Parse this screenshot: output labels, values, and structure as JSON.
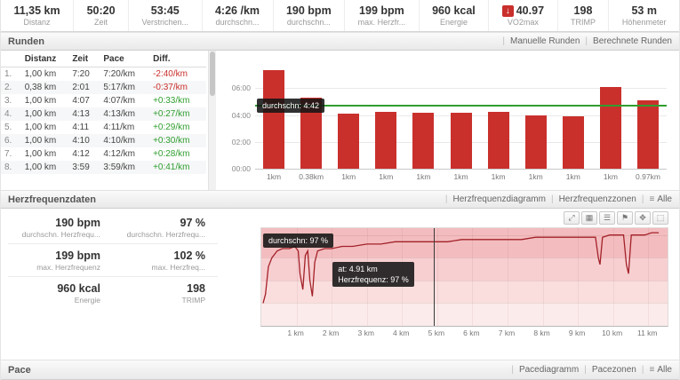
{
  "colors": {
    "accent_red": "#c9302c",
    "diff_green": "#2f9e2f",
    "hr_line": "#a32129",
    "avg_line_green": "#2f9e2f"
  },
  "stats_bar": {
    "items": [
      {
        "value": "11,35 km",
        "label": "Distanz"
      },
      {
        "value": "50:20",
        "label": "Zeit"
      },
      {
        "value": "53:45",
        "label": "Verstrichen..."
      },
      {
        "value": "4:26 /km",
        "label": "durchschn..."
      },
      {
        "value": "190 bpm",
        "label": "durchschn..."
      },
      {
        "value": "199 bpm",
        "label": "max. Herzfr..."
      },
      {
        "value": "960 kcal",
        "label": "Energie"
      },
      {
        "value": "40.97",
        "label": "VO2max",
        "icon": "red-down-arrow"
      },
      {
        "value": "198",
        "label": "TRIMP"
      },
      {
        "value": "53 m",
        "label": "Höhenmeter"
      }
    ]
  },
  "runden": {
    "title": "Runden",
    "links": [
      "Manuelle Runden",
      "Berechnete Runden"
    ],
    "table": {
      "headers": [
        "Distanz",
        "Zeit",
        "Pace",
        "Diff."
      ],
      "rows": [
        {
          "num": "1.",
          "distanz": "1,00 km",
          "zeit": "7:20",
          "pace": "7:20/km",
          "diff": "-2:40/km",
          "trend": "neg"
        },
        {
          "num": "2.",
          "distanz": "0,38 km",
          "zeit": "2:01",
          "pace": "5:17/km",
          "diff": "-0:37/km",
          "trend": "neg"
        },
        {
          "num": "3.",
          "distanz": "1,00 km",
          "zeit": "4:07",
          "pace": "4:07/km",
          "diff": "+0:33/km",
          "trend": "pos"
        },
        {
          "num": "4.",
          "distanz": "1,00 km",
          "zeit": "4:13",
          "pace": "4:13/km",
          "diff": "+0:27/km",
          "trend": "pos"
        },
        {
          "num": "5.",
          "distanz": "1,00 km",
          "zeit": "4:11",
          "pace": "4:11/km",
          "diff": "+0:29/km",
          "trend": "pos"
        },
        {
          "num": "6.",
          "distanz": "1,00 km",
          "zeit": "4:10",
          "pace": "4:10/km",
          "diff": "+0:30/km",
          "trend": "pos"
        },
        {
          "num": "7.",
          "distanz": "1,00 km",
          "zeit": "4:12",
          "pace": "4:12/km",
          "diff": "+0:28/km",
          "trend": "pos"
        },
        {
          "num": "8.",
          "distanz": "1,00 km",
          "zeit": "3:59",
          "pace": "3:59/km",
          "diff": "+0:41/km",
          "trend": "pos"
        }
      ]
    }
  },
  "herzfrequenz": {
    "title": "Herzfrequenzdaten",
    "links": [
      "Herzfrequenzdiagramm",
      "Herzfrequenzzonen"
    ],
    "alle_label": "Alle",
    "stats": [
      {
        "value": "190 bpm",
        "label": "durchschn. Herzfrequ..."
      },
      {
        "value": "97 %",
        "label": "durchschn. Herzfrequ..."
      },
      {
        "value": "199 bpm",
        "label": "max. Herzfrequenz"
      },
      {
        "value": "102 %",
        "label": "max. Herzfreq..."
      },
      {
        "value": "960 kcal",
        "label": "Energie"
      },
      {
        "value": "198",
        "label": "TRIMP"
      }
    ],
    "toolbar_icons": [
      "expand-icon",
      "grid-icon",
      "list-icon",
      "tag-icon",
      "move-icon",
      "crop-icon"
    ]
  },
  "pace": {
    "title": "Pace",
    "links": [
      "Pacediagramm",
      "Pacezonen"
    ],
    "alle_label": "Alle"
  },
  "chart_data": [
    {
      "type": "bar",
      "name": "lap-pace-chart",
      "categories": [
        "1km",
        "0.38km",
        "1km",
        "1km",
        "1km",
        "1km",
        "1km",
        "1km",
        "1km",
        "1km",
        "0.97km"
      ],
      "values": [
        "7:20",
        "5:17",
        "4:07",
        "4:13",
        "4:11",
        "4:10",
        "4:12",
        "3:59",
        "3:55",
        "6:04",
        "5:04"
      ],
      "values_seconds": [
        440,
        317,
        247,
        253,
        251,
        250,
        252,
        239,
        235,
        364,
        304
      ],
      "y_ticks": [
        "00:00",
        "02:00",
        "04:00",
        "06:00"
      ],
      "y_tick_seconds": [
        0,
        120,
        240,
        360
      ],
      "ylim_seconds": [
        0,
        480
      ],
      "average": {
        "label": "durchschn: 4:42",
        "seconds": 282
      },
      "bar_color": "#c9302c"
    },
    {
      "type": "line",
      "name": "heart-rate-chart",
      "x_ticks": [
        "1 km",
        "2 km",
        "3 km",
        "4 km",
        "5 km",
        "6 km",
        "7 km",
        "8 km",
        "9 km",
        "10 km",
        "11 km"
      ],
      "x_tick_km": [
        1,
        2,
        3,
        4,
        5,
        6,
        7,
        8,
        9,
        10,
        11
      ],
      "xlim_km": [
        0,
        11.55
      ],
      "y_ticks": [
        "100 %",
        "90 %",
        "80 %",
        "70 %",
        "60 %"
      ],
      "y_tick_pct": [
        100,
        90,
        80,
        70,
        60
      ],
      "ylim_pct": [
        60,
        103
      ],
      "zones": [
        {
          "from": 60,
          "to": 70,
          "color": "#fcebeb"
        },
        {
          "from": 70,
          "to": 80,
          "color": "#fadede"
        },
        {
          "from": 80,
          "to": 90,
          "color": "#f7cfd1"
        },
        {
          "from": 90,
          "to": 103,
          "color": "#f3bdbf"
        }
      ],
      "points": [
        [
          0.05,
          70
        ],
        [
          0.12,
          74
        ],
        [
          0.2,
          86
        ],
        [
          0.3,
          90
        ],
        [
          0.45,
          93
        ],
        [
          0.6,
          94
        ],
        [
          0.8,
          94
        ],
        [
          0.95,
          95
        ],
        [
          1.05,
          93
        ],
        [
          1.1,
          83
        ],
        [
          1.18,
          76
        ],
        [
          1.25,
          91
        ],
        [
          1.32,
          93
        ],
        [
          1.38,
          80
        ],
        [
          1.45,
          73
        ],
        [
          1.52,
          88
        ],
        [
          1.6,
          93
        ],
        [
          1.8,
          94
        ],
        [
          2.0,
          94
        ],
        [
          2.3,
          95
        ],
        [
          2.6,
          95
        ],
        [
          3.0,
          96
        ],
        [
          3.4,
          96
        ],
        [
          3.8,
          97
        ],
        [
          4.2,
          97
        ],
        [
          4.6,
          97
        ],
        [
          4.91,
          97
        ],
        [
          5.3,
          97
        ],
        [
          5.7,
          98
        ],
        [
          6.1,
          98
        ],
        [
          6.5,
          98
        ],
        [
          7.0,
          98
        ],
        [
          7.4,
          98
        ],
        [
          7.8,
          99
        ],
        [
          8.2,
          99
        ],
        [
          8.6,
          99
        ],
        [
          9.0,
          99
        ],
        [
          9.3,
          99
        ],
        [
          9.5,
          99
        ],
        [
          9.58,
          90
        ],
        [
          9.63,
          87
        ],
        [
          9.7,
          99
        ],
        [
          9.9,
          100
        ],
        [
          10.1,
          100
        ],
        [
          10.3,
          100
        ],
        [
          10.38,
          87
        ],
        [
          10.44,
          83
        ],
        [
          10.52,
          100
        ],
        [
          10.7,
          100
        ],
        [
          10.9,
          100
        ],
        [
          11.1,
          101
        ],
        [
          11.3,
          101
        ]
      ],
      "cursor": {
        "km": 4.91
      },
      "tooltips": {
        "average": "durchschn: 97 %",
        "cursor_line1": "at: 4.91 km",
        "cursor_line2": "Herzfrequenz: 97 %"
      }
    }
  ]
}
